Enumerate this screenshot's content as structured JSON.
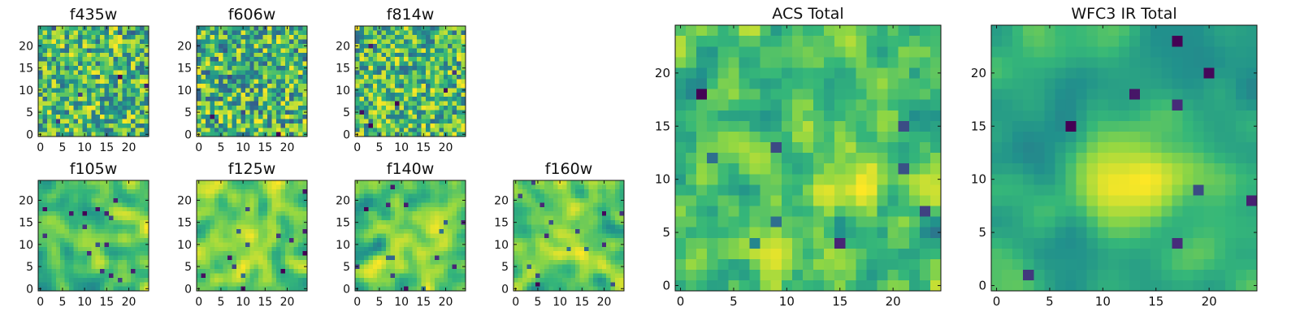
{
  "chart_data": [
    {
      "type": "heatmap",
      "title": "f435w",
      "xlabel": "",
      "ylabel": "",
      "grid": false,
      "colormap": "viridis",
      "shape": [
        25,
        25
      ],
      "xlim": [
        -0.5,
        24.5
      ],
      "ylim": [
        -0.5,
        24.5
      ],
      "xticks": [
        "0",
        "5",
        "10",
        "15",
        "20"
      ],
      "yticks": [
        "0",
        "5",
        "10",
        "15",
        "20"
      ],
      "values": []
    },
    {
      "type": "heatmap",
      "title": "f606w",
      "xlabel": "",
      "ylabel": "",
      "grid": false,
      "colormap": "viridis",
      "shape": [
        25,
        25
      ],
      "xlim": [
        -0.5,
        24.5
      ],
      "ylim": [
        -0.5,
        24.5
      ],
      "xticks": [
        "0",
        "5",
        "10",
        "15",
        "20"
      ],
      "yticks": [
        "0",
        "5",
        "10",
        "15",
        "20"
      ],
      "values": []
    },
    {
      "type": "heatmap",
      "title": "f814w",
      "xlabel": "",
      "ylabel": "",
      "grid": false,
      "colormap": "viridis",
      "shape": [
        25,
        25
      ],
      "xlim": [
        -0.5,
        24.5
      ],
      "ylim": [
        -0.5,
        24.5
      ],
      "xticks": [
        "0",
        "5",
        "10",
        "15",
        "20"
      ],
      "yticks": [
        "0",
        "5",
        "10",
        "15",
        "20"
      ],
      "values": []
    },
    {
      "type": "heatmap",
      "title": "f105w",
      "xlabel": "",
      "ylabel": "",
      "grid": false,
      "colormap": "viridis",
      "shape": [
        25,
        25
      ],
      "xlim": [
        -0.5,
        24.5
      ],
      "ylim": [
        -0.5,
        24.5
      ],
      "xticks": [
        "0",
        "5",
        "10",
        "15",
        "20"
      ],
      "yticks": [
        "0",
        "5",
        "10",
        "15",
        "20"
      ],
      "values": []
    },
    {
      "type": "heatmap",
      "title": "f125w",
      "xlabel": "",
      "ylabel": "",
      "grid": false,
      "colormap": "viridis",
      "shape": [
        25,
        25
      ],
      "xlim": [
        -0.5,
        24.5
      ],
      "ylim": [
        -0.5,
        24.5
      ],
      "xticks": [
        "0",
        "5",
        "10",
        "15",
        "20"
      ],
      "yticks": [
        "0",
        "5",
        "10",
        "15",
        "20"
      ],
      "values": []
    },
    {
      "type": "heatmap",
      "title": "f140w",
      "xlabel": "",
      "ylabel": "",
      "grid": false,
      "colormap": "viridis",
      "shape": [
        25,
        25
      ],
      "xlim": [
        -0.5,
        24.5
      ],
      "ylim": [
        -0.5,
        24.5
      ],
      "xticks": [
        "0",
        "5",
        "10",
        "15",
        "20"
      ],
      "yticks": [
        "0",
        "5",
        "10",
        "15",
        "20"
      ],
      "values": []
    },
    {
      "type": "heatmap",
      "title": "f160w",
      "xlabel": "",
      "ylabel": "",
      "grid": false,
      "colormap": "viridis",
      "shape": [
        25,
        25
      ],
      "xlim": [
        -0.5,
        24.5
      ],
      "ylim": [
        -0.5,
        24.5
      ],
      "xticks": [
        "0",
        "5",
        "10",
        "15",
        "20"
      ],
      "yticks": [
        "0",
        "5",
        "10",
        "15",
        "20"
      ],
      "values": []
    },
    {
      "type": "heatmap",
      "title": "ACS Total",
      "xlabel": "",
      "ylabel": "",
      "grid": false,
      "colormap": "viridis",
      "shape": [
        25,
        25
      ],
      "xlim": [
        -0.5,
        24.5
      ],
      "ylim": [
        -0.5,
        24.5
      ],
      "xticks": [
        "0",
        "5",
        "10",
        "15",
        "20"
      ],
      "yticks": [
        "0",
        "5",
        "10",
        "15",
        "20"
      ],
      "values": []
    },
    {
      "type": "heatmap",
      "title": "WFC3 IR Total",
      "xlabel": "",
      "ylabel": "",
      "grid": false,
      "colormap": "viridis",
      "shape": [
        25,
        25
      ],
      "xlim": [
        -0.5,
        24.5
      ],
      "ylim": [
        -0.5,
        24.5
      ],
      "xticks": [
        "0",
        "5",
        "10",
        "15",
        "20"
      ],
      "yticks": [
        "0",
        "5",
        "10",
        "15",
        "20"
      ],
      "values": []
    }
  ]
}
